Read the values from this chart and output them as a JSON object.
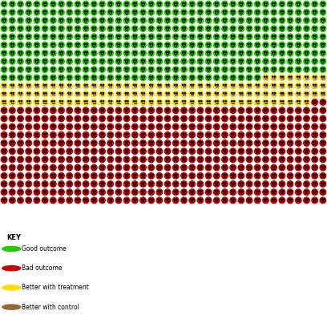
{
  "total": 1000,
  "cols": 40,
  "rows": 25,
  "good_count": 392,
  "yellow_count": 126,
  "red_count": 482,
  "green_color": "#22cc00",
  "yellow_color": "#ffdd00",
  "red_color": "#cc0000",
  "better_with_control_color": "#996633",
  "legend_items": [
    {
      "label": "Good outcome",
      "color": "#22cc00"
    },
    {
      "label": "Bad outcome",
      "color": "#cc0000"
    },
    {
      "label": "Better with treatment",
      "color": "#ffdd00"
    },
    {
      "label": "Better with control",
      "color": "#996633"
    }
  ],
  "key_label": "KEY",
  "fig_width": 4.08,
  "fig_height": 3.93,
  "dpi": 100,
  "bg_color": "#ffffff"
}
